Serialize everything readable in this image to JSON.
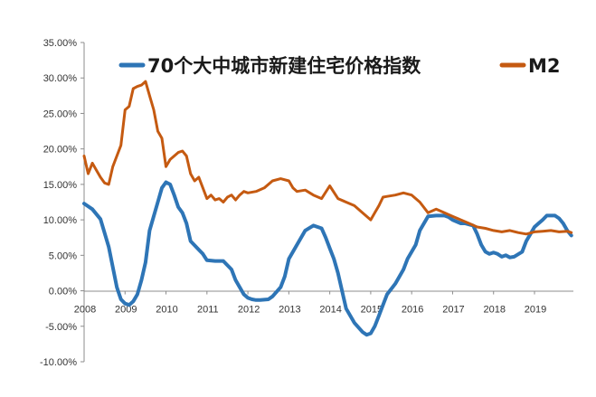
{
  "chart_data": {
    "type": "line",
    "title": "",
    "xlabel": "",
    "ylabel": "",
    "x_ticks": [
      "2008",
      "2009",
      "2010",
      "2011",
      "2012",
      "2013",
      "2014",
      "2015",
      "2016",
      "2017",
      "2018",
      "2019"
    ],
    "y_ticks": [
      "35.00%",
      "30.00%",
      "25.00%",
      "20.00%",
      "15.00%",
      "10.00%",
      "5.00%",
      "0.00%",
      "-5.00%",
      "-10.00%"
    ],
    "ylim": [
      -10,
      35
    ],
    "xlim": [
      2008.0,
      2019.95
    ],
    "grid": false,
    "legend_position": "top",
    "series": [
      {
        "name": "70个大中城市新建住宅价格指数",
        "color": "#2e75b6",
        "x": [
          2008.0,
          2008.2,
          2008.4,
          2008.6,
          2008.8,
          2008.9,
          2009.0,
          2009.1,
          2009.2,
          2009.3,
          2009.4,
          2009.5,
          2009.6,
          2009.8,
          2009.9,
          2010.0,
          2010.1,
          2010.2,
          2010.3,
          2010.4,
          2010.5,
          2010.6,
          2010.8,
          2010.9,
          2011.0,
          2011.2,
          2011.3,
          2011.4,
          2011.6,
          2011.7,
          2011.9,
          2012.0,
          2012.1,
          2012.2,
          2012.3,
          2012.5,
          2012.6,
          2012.8,
          2012.9,
          2013.0,
          2013.2,
          2013.4,
          2013.6,
          2013.8,
          2013.9,
          2014.0,
          2014.1,
          2014.2,
          2014.3,
          2014.4,
          2014.6,
          2014.8,
          2014.9,
          2015.0,
          2015.1,
          2015.2,
          2015.3,
          2015.4,
          2015.6,
          2015.8,
          2015.9,
          2016.0,
          2016.1,
          2016.2,
          2016.4,
          2016.6,
          2016.7,
          2016.8,
          2016.9,
          2017.0,
          2017.2,
          2017.3,
          2017.5,
          2017.6,
          2017.7,
          2017.8,
          2017.9,
          2018.0,
          2018.1,
          2018.2,
          2018.3,
          2018.4,
          2018.5,
          2018.7,
          2018.8,
          2018.9,
          2019.0,
          2019.1,
          2019.2,
          2019.3,
          2019.5,
          2019.6,
          2019.7,
          2019.8,
          2019.9
        ],
        "values": [
          12.3,
          11.5,
          10.1,
          6.2,
          0.5,
          -1.2,
          -1.8,
          -2.0,
          -1.5,
          -0.5,
          1.5,
          4.0,
          8.5,
          12.5,
          14.5,
          15.3,
          15.0,
          13.5,
          11.8,
          11.0,
          9.5,
          7.0,
          5.8,
          5.2,
          4.3,
          4.2,
          4.2,
          4.2,
          3.0,
          1.5,
          -0.5,
          -1.0,
          -1.2,
          -1.3,
          -1.3,
          -1.2,
          -0.8,
          0.5,
          2.0,
          4.5,
          6.5,
          8.5,
          9.2,
          8.8,
          7.5,
          6.0,
          4.5,
          2.5,
          0.0,
          -2.5,
          -4.5,
          -5.8,
          -6.2,
          -6.0,
          -5.0,
          -3.5,
          -2.0,
          -0.5,
          1.0,
          3.0,
          4.5,
          5.5,
          6.5,
          8.5,
          10.5,
          10.6,
          10.6,
          10.6,
          10.4,
          10.0,
          9.5,
          9.5,
          9.2,
          8.0,
          6.5,
          5.5,
          5.2,
          5.4,
          5.2,
          4.8,
          5.0,
          4.7,
          4.8,
          5.5,
          7.0,
          8.0,
          9.0,
          9.5,
          10.0,
          10.6,
          10.6,
          10.2,
          9.5,
          8.5,
          7.8
        ]
      },
      {
        "name": "M2",
        "color": "#c55a11",
        "x": [
          2008.0,
          2008.1,
          2008.2,
          2008.3,
          2008.4,
          2008.5,
          2008.6,
          2008.7,
          2008.8,
          2008.9,
          2009.0,
          2009.1,
          2009.2,
          2009.3,
          2009.4,
          2009.5,
          2009.6,
          2009.7,
          2009.8,
          2009.9,
          2010.0,
          2010.1,
          2010.2,
          2010.3,
          2010.4,
          2010.5,
          2010.6,
          2010.7,
          2010.8,
          2010.9,
          2011.0,
          2011.1,
          2011.2,
          2011.3,
          2011.4,
          2011.5,
          2011.6,
          2011.7,
          2011.8,
          2011.9,
          2012.0,
          2012.2,
          2012.4,
          2012.6,
          2012.8,
          2013.0,
          2013.1,
          2013.2,
          2013.4,
          2013.6,
          2013.8,
          2014.0,
          2014.2,
          2014.4,
          2014.6,
          2014.8,
          2015.0,
          2015.1,
          2015.2,
          2015.3,
          2015.4,
          2015.6,
          2015.8,
          2016.0,
          2016.2,
          2016.4,
          2016.6,
          2016.8,
          2017.0,
          2017.2,
          2017.4,
          2017.6,
          2017.8,
          2018.0,
          2018.2,
          2018.4,
          2018.6,
          2018.8,
          2019.0,
          2019.2,
          2019.4,
          2019.6,
          2019.8,
          2019.9
        ],
        "values": [
          19.0,
          16.5,
          18.0,
          17.0,
          16.0,
          15.2,
          15.0,
          17.5,
          19.0,
          20.5,
          25.5,
          26.0,
          28.5,
          28.8,
          29.0,
          29.5,
          27.5,
          25.5,
          22.5,
          21.5,
          17.5,
          18.5,
          19.0,
          19.5,
          19.7,
          19.0,
          16.5,
          15.5,
          16.0,
          14.5,
          13.0,
          13.5,
          12.8,
          13.0,
          12.5,
          13.2,
          13.5,
          12.8,
          13.5,
          14.0,
          13.8,
          14.0,
          14.5,
          15.5,
          15.8,
          15.5,
          14.5,
          14.0,
          14.2,
          13.5,
          13.0,
          14.8,
          13.0,
          12.5,
          12.0,
          11.0,
          10.0,
          11.0,
          12.0,
          13.2,
          13.3,
          13.5,
          13.8,
          13.5,
          12.5,
          11.0,
          11.5,
          11.0,
          10.5,
          10.0,
          9.5,
          9.0,
          8.8,
          8.5,
          8.3,
          8.5,
          8.2,
          8.0,
          8.3,
          8.4,
          8.5,
          8.3,
          8.4,
          8.2
        ]
      }
    ]
  }
}
